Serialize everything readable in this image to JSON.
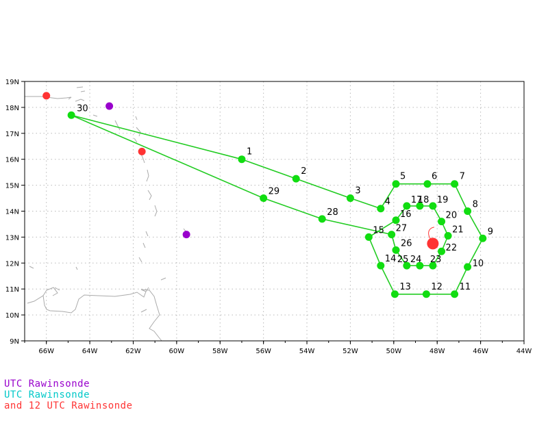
{
  "colors": {
    "track": "#22cc22",
    "dropsonde": "#11dd11",
    "land": "#aaaaaa",
    "grid": "#b8b8b8",
    "frame": "#000000",
    "purple": "#9900cc",
    "cyan": "#00c8c8",
    "red": "#ff3333"
  },
  "axes": {
    "lon_ticks": [
      "66W",
      "64W",
      "62W",
      "60W",
      "58W",
      "56W",
      "54W",
      "52W",
      "50W",
      "48W",
      "46W",
      "44W"
    ],
    "lat_ticks": [
      "9N",
      "10N",
      "11N",
      "12N",
      "13N",
      "14N",
      "15N",
      "16N",
      "17N",
      "18N",
      "19N"
    ],
    "lon_range": [
      -67,
      -44
    ],
    "lat_range": [
      9,
      19
    ]
  },
  "drops": [
    {
      "n": "30",
      "lon": -64.85,
      "lat": 17.7
    },
    {
      "n": "1",
      "lon": -57.0,
      "lat": 16.0
    },
    {
      "n": "2",
      "lon": -54.5,
      "lat": 15.25
    },
    {
      "n": "3",
      "lon": -52.0,
      "lat": 14.5
    },
    {
      "n": "4",
      "lon": -50.6,
      "lat": 14.1
    },
    {
      "n": "5",
      "lon": -49.9,
      "lat": 15.05
    },
    {
      "n": "6",
      "lon": -48.45,
      "lat": 15.05
    },
    {
      "n": "7",
      "lon": -47.2,
      "lat": 15.05
    },
    {
      "n": "8",
      "lon": -46.6,
      "lat": 14.0
    },
    {
      "n": "9",
      "lon": -45.9,
      "lat": 12.95
    },
    {
      "n": "10",
      "lon": -46.6,
      "lat": 11.85
    },
    {
      "n": "11",
      "lon": -47.2,
      "lat": 10.8
    },
    {
      "n": "12",
      "lon": -48.5,
      "lat": 10.8
    },
    {
      "n": "13",
      "lon": -49.95,
      "lat": 10.8
    },
    {
      "n": "14",
      "lon": -50.6,
      "lat": 11.9
    },
    {
      "n": "15",
      "lon": -51.15,
      "lat": 13.0
    },
    {
      "n": "16",
      "lon": -49.9,
      "lat": 13.65
    },
    {
      "n": "17",
      "lon": -49.4,
      "lat": 14.2
    },
    {
      "n": "18",
      "lon": -48.8,
      "lat": 14.2
    },
    {
      "n": "19",
      "lon": -48.2,
      "lat": 14.2
    },
    {
      "n": "20",
      "lon": -47.8,
      "lat": 13.6
    },
    {
      "n": "21",
      "lon": -47.5,
      "lat": 13.05
    },
    {
      "n": "22",
      "lon": -47.8,
      "lat": 12.45
    },
    {
      "n": "23",
      "lon": -48.2,
      "lat": 11.9
    },
    {
      "n": "24",
      "lon": -48.8,
      "lat": 11.9
    },
    {
      "n": "25",
      "lon": -49.4,
      "lat": 11.9
    },
    {
      "n": "26",
      "lon": -49.9,
      "lat": 12.5
    },
    {
      "n": "27",
      "lon": -50.1,
      "lat": 13.1
    },
    {
      "n": "28",
      "lon": -53.3,
      "lat": 13.7
    },
    {
      "n": "29",
      "lon": -56.0,
      "lat": 14.5
    }
  ],
  "track_order": [
    "30",
    "1",
    "2",
    "3",
    "4",
    "5",
    "6",
    "7",
    "8",
    "9",
    "10",
    "11",
    "12",
    "13",
    "14",
    "15",
    "16",
    "17",
    "18",
    "19",
    "20",
    "21",
    "22",
    "23",
    "24",
    "25",
    "26",
    "27",
    "28",
    "29",
    "30"
  ],
  "rawinsondes": [
    {
      "id": "purple-1",
      "color": "purple",
      "lon": -63.1,
      "lat": 18.05
    },
    {
      "id": "purple-2",
      "color": "purple",
      "lon": -59.55,
      "lat": 13.1
    },
    {
      "id": "red-1",
      "color": "red",
      "lon": -66.0,
      "lat": 18.45
    },
    {
      "id": "red-2",
      "color": "red",
      "lon": -61.6,
      "lat": 16.3
    }
  ],
  "storm_center": {
    "lon": -48.2,
    "lat": 12.75
  },
  "legend": {
    "line1": "UTC Rawinsonde",
    "line2": "UTC Rawinsonde",
    "line3": "and 12 UTC Rawinsonde"
  }
}
